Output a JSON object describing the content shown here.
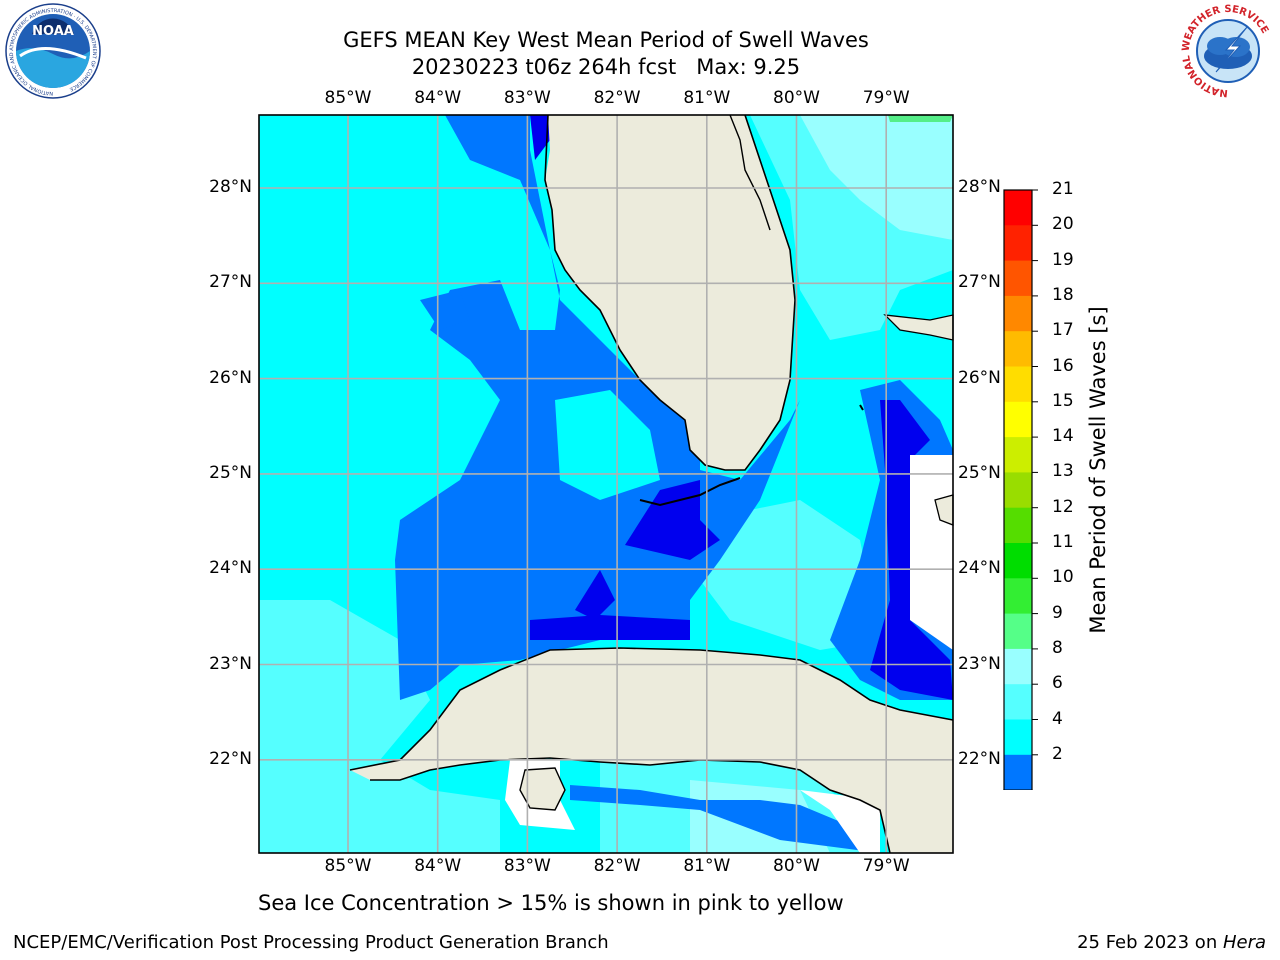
{
  "title": {
    "line1": "GEFS MEAN Key West Mean Period of Swell Waves",
    "line2": "20230223 t06z 264h fcst   Max: 9.25"
  },
  "map": {
    "lon_ticks": [
      "85°W",
      "84°W",
      "83°W",
      "82°W",
      "81°W",
      "80°W",
      "79°W"
    ],
    "lat_ticks": [
      "28°N",
      "27°N",
      "26°N",
      "25°N",
      "24°N",
      "23°N",
      "22°N"
    ],
    "land_color": "#ecebdc",
    "ocean_dark": "#0000ee",
    "ocean_mid": "#0077ff",
    "ocean_light": "#00ffff",
    "ocean_pale": "#55ffff",
    "ocean_paler": "#99ffff"
  },
  "colorbar": {
    "label": "Mean Period of Swell Waves [s]",
    "ticks": [
      "2",
      "4",
      "6",
      "8",
      "9",
      "10",
      "11",
      "12",
      "13",
      "14",
      "15",
      "16",
      "17",
      "18",
      "19",
      "20",
      "21"
    ],
    "colors": [
      "#0077ff",
      "#00ffff",
      "#55ffff",
      "#99ffff",
      "#55ff88",
      "#33ee33",
      "#00dd00",
      "#55dd00",
      "#99dd00",
      "#ccee00",
      "#ffff00",
      "#ffdd00",
      "#ffbb00",
      "#ff8800",
      "#ff5500",
      "#ff2200",
      "#ff0000"
    ],
    "extend_color": "#0000ee"
  },
  "caption": "Sea Ice Concentration > 15% is shown in pink to yellow",
  "footer": {
    "left": "NCEP/EMC/Verification Post Processing Product Generation Branch",
    "right_prefix": "25 Feb 2023 on ",
    "right_host": "Hera"
  },
  "logos": {
    "noaa_text": "NOAA",
    "noaa_ring_text": "NATIONAL OCEANIC AND ATMOSPHERIC ADMINISTRATION · U.S. DEPARTMENT OF COMMERCE",
    "nws_ring_text": "NATIONAL WEATHER SERVICE"
  }
}
